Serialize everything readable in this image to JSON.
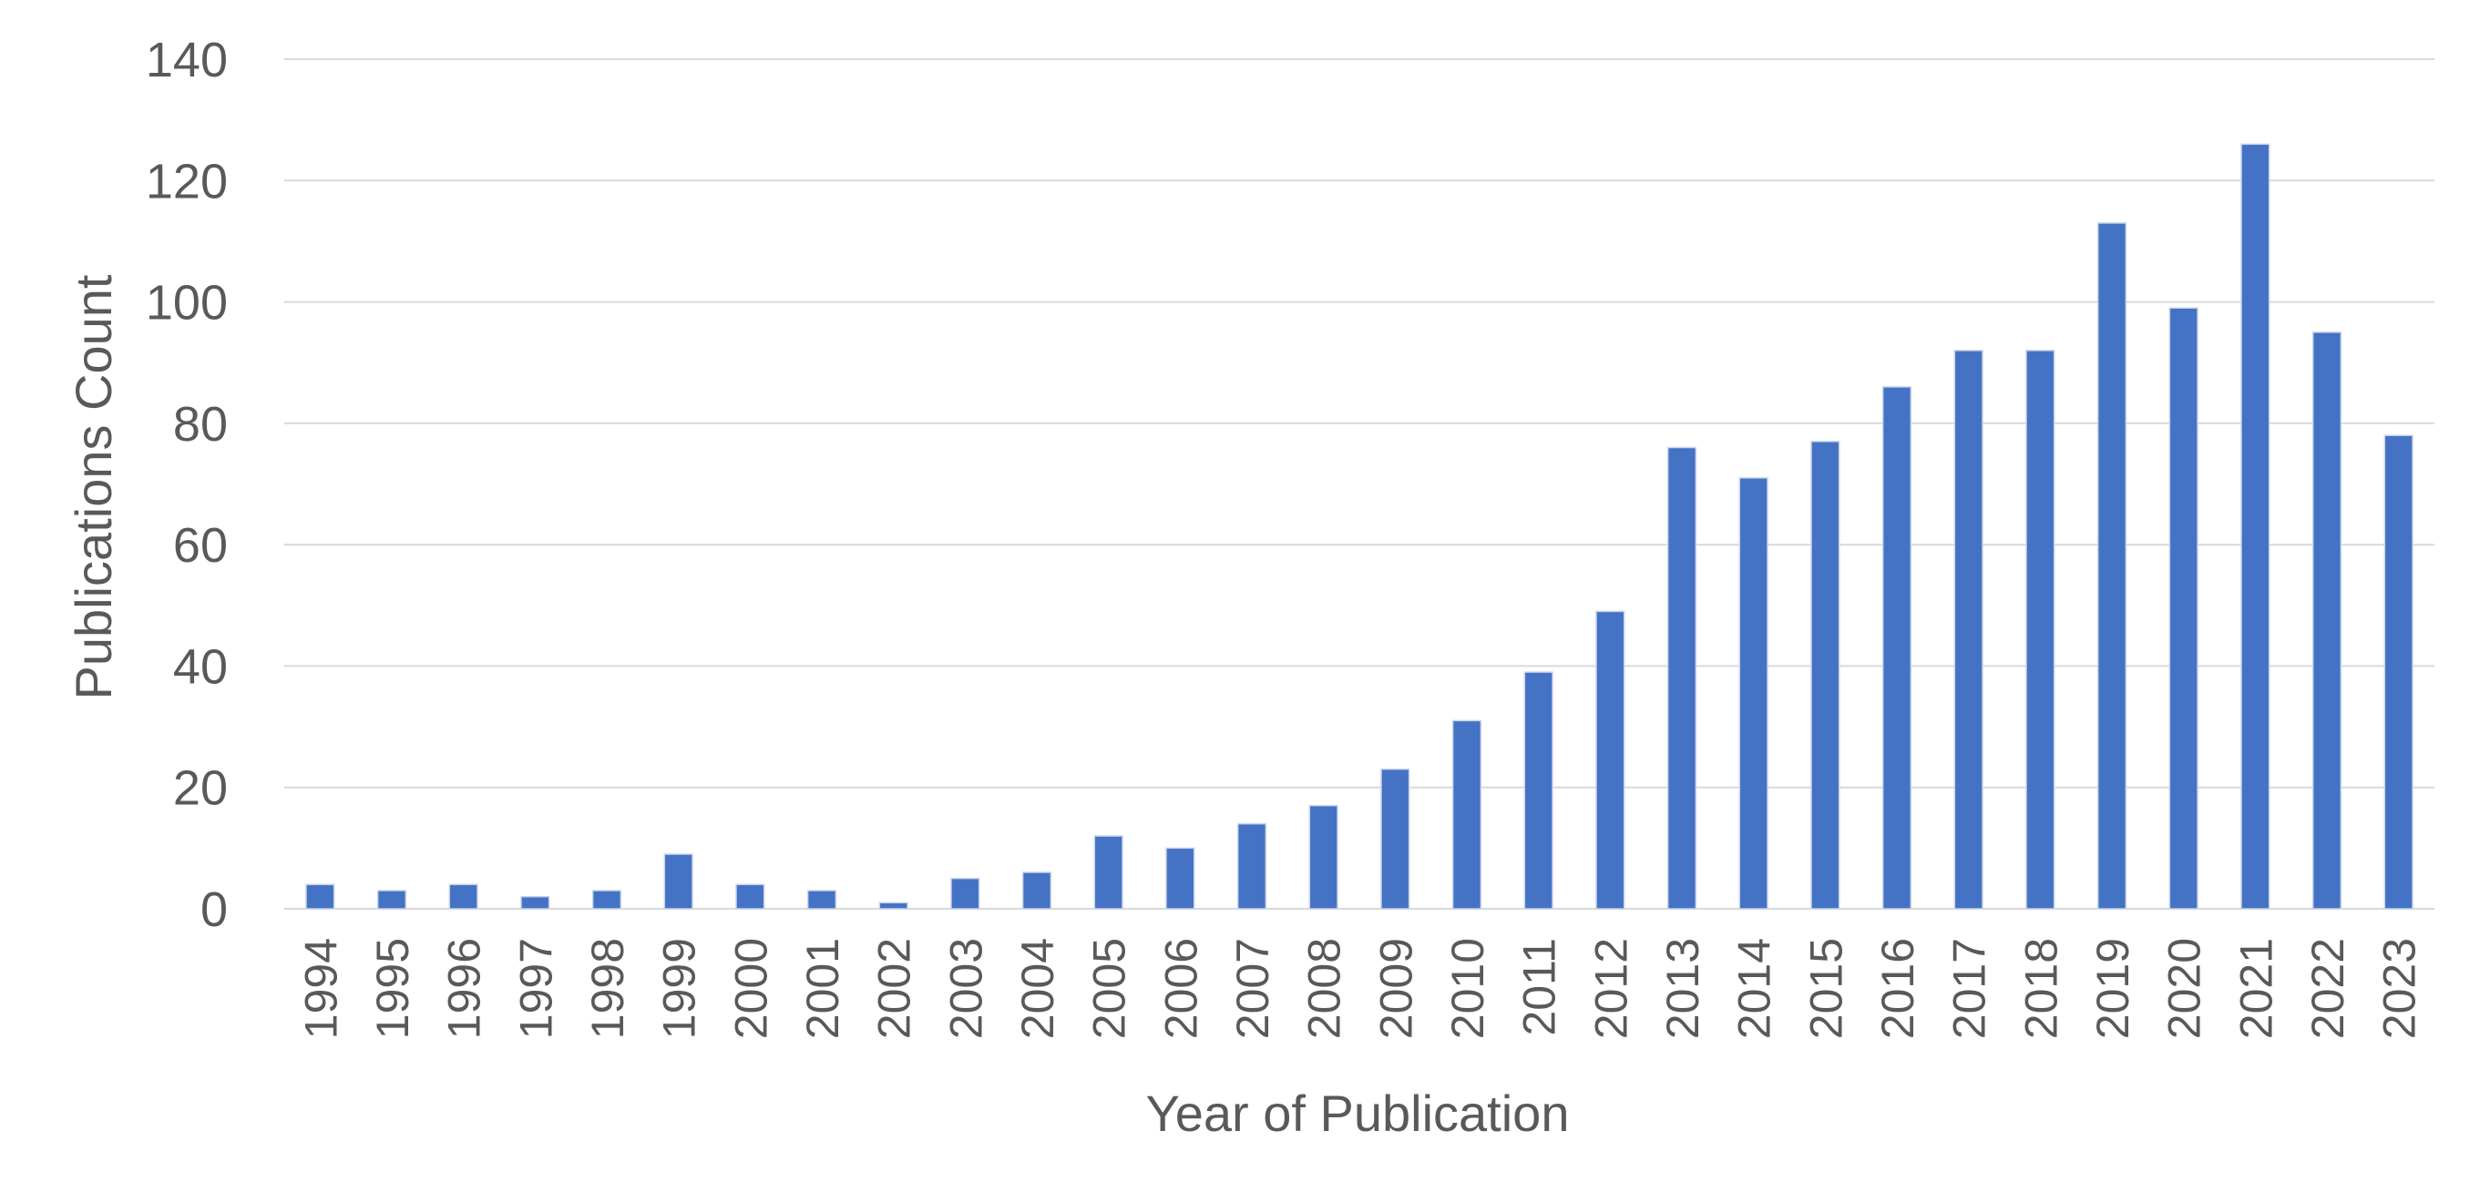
{
  "chart_data": {
    "type": "bar",
    "title": "",
    "xlabel": "Year of Publication",
    "ylabel": "Publications Count",
    "ylim": [
      0,
      140
    ],
    "yticks": [
      0,
      20,
      40,
      60,
      80,
      100,
      120,
      140
    ],
    "grid": true,
    "legend": "none",
    "bar_color": "#4472c4",
    "categories": [
      "1994",
      "1995",
      "1996",
      "1997",
      "1998",
      "1999",
      "2000",
      "2001",
      "2002",
      "2003",
      "2004",
      "2005",
      "2006",
      "2007",
      "2008",
      "2009",
      "2010",
      "2011",
      "2012",
      "2013",
      "2014",
      "2015",
      "2016",
      "2017",
      "2018",
      "2019",
      "2020",
      "2021",
      "2022",
      "2023"
    ],
    "values": [
      4,
      3,
      4,
      2,
      3,
      9,
      4,
      3,
      1,
      5,
      6,
      12,
      10,
      14,
      17,
      23,
      31,
      39,
      49,
      76,
      71,
      77,
      86,
      92,
      92,
      113,
      99,
      126,
      95,
      78
    ]
  }
}
